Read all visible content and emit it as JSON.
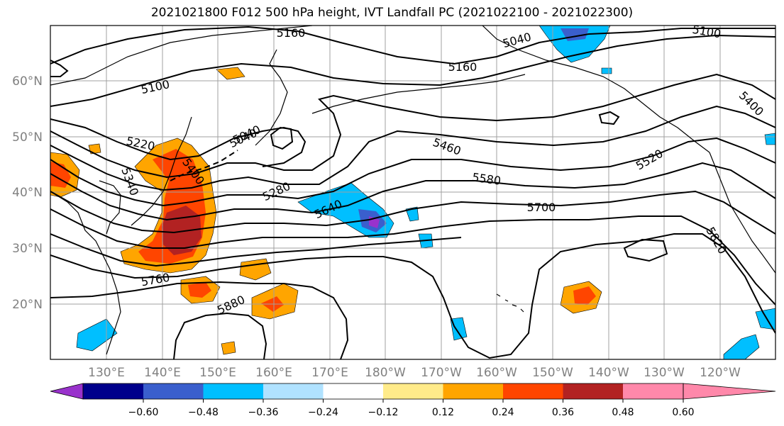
{
  "title": "2021021800 F012 500 hPa height, IVT Landfall PC (2021022100 - 2021022300)",
  "map": {
    "lat_labels": [
      "60°N",
      "50°N",
      "40°N",
      "30°N",
      "20°N"
    ],
    "lon_labels": [
      "130°E",
      "140°E",
      "150°E",
      "160°E",
      "170°E",
      "180°W",
      "170°W",
      "160°W",
      "150°W",
      "140°W",
      "130°W",
      "120°W"
    ],
    "contour_labels": [
      "5160",
      "5040",
      "5100",
      "5160",
      "5100",
      "5040",
      "5220",
      "5340",
      "5400",
      "5040",
      "5460",
      "5400",
      "5520",
      "5580",
      "5280",
      "5700",
      "5640",
      "5820",
      "5760",
      "5880"
    ]
  },
  "colorbar": {
    "colors": [
      "#9932cc",
      "#00008b",
      "#3a5fcd",
      "#00bfff",
      "#b0e2ff",
      "#ffffff",
      "#ffeb8a",
      "#ffa500",
      "#ff4500",
      "#b22222",
      "#ff88aa"
    ],
    "ticks": [
      "−0.60",
      "−0.48",
      "−0.36",
      "−0.24",
      "−0.12",
      "0.12",
      "0.24",
      "0.36",
      "0.48",
      "0.60"
    ]
  }
}
